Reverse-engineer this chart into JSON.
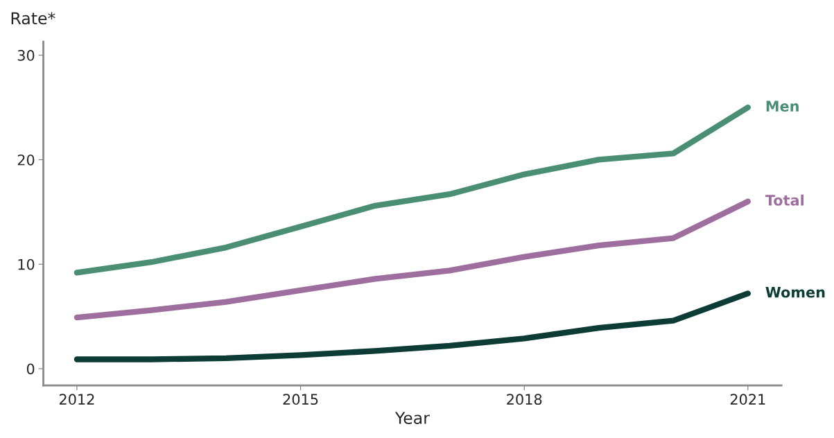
{
  "chart_data": {
    "type": "line",
    "xlabel": "Year",
    "ylabel": "Rate*",
    "x": [
      2012,
      2013,
      2014,
      2015,
      2016,
      2017,
      2018,
      2019,
      2020,
      2021
    ],
    "series": [
      {
        "name": "Men",
        "color": "#4a8f73",
        "values": [
          9.2,
          10.2,
          11.6,
          13.6,
          15.6,
          16.7,
          18.6,
          20.0,
          20.6,
          25.0
        ]
      },
      {
        "name": "Total",
        "color": "#9e6f9e",
        "values": [
          4.9,
          5.6,
          6.4,
          7.5,
          8.6,
          9.4,
          10.7,
          11.8,
          12.5,
          16.0
        ]
      },
      {
        "name": "Women",
        "color": "#0d3b36",
        "values": [
          0.9,
          0.9,
          1.0,
          1.3,
          1.7,
          2.2,
          2.9,
          3.9,
          4.6,
          7.2
        ]
      }
    ],
    "xlim": [
      2011.55,
      2021.45
    ],
    "xticks": [
      2012,
      2015,
      2018,
      2021
    ],
    "ylim": [
      -1.6,
      31.3
    ],
    "yticks": [
      0,
      10,
      20,
      30
    ],
    "grid": false,
    "legend": false,
    "marker": "none",
    "line_style": "solid"
  }
}
